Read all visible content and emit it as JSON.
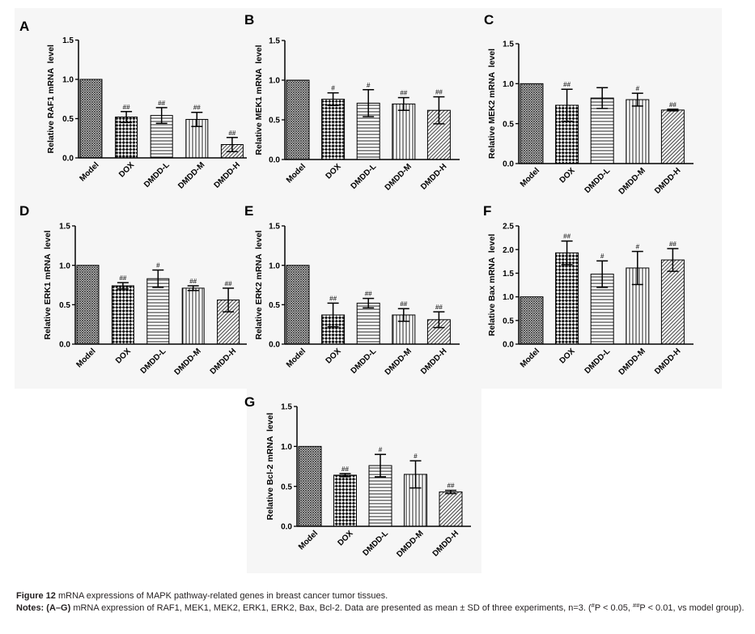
{
  "colors": {
    "ink": "#000000",
    "panel_background": "#f6f6f6",
    "caption_text": "#231f20"
  },
  "caption": {
    "label": "Figure 12",
    "title": "mRNA expressions of MAPK pathway-related genes in breast cancer tumor tissues.",
    "notes_label": "Notes:",
    "notes_range": "(A–G)",
    "notes_text": "mRNA expression of RAF1, MEK1, MEK2, ERK1, ERK2, Bax, Bcl-2. Data are presented as mean ± SD of three experiments, n=3. (",
    "sig1_mark": "#",
    "sig1_text": "P < 0.05, ",
    "sig2_mark": "##",
    "sig2_text": "P < 0.01, vs model group)."
  },
  "chart_data": [
    {
      "panel": "A",
      "type": "bar",
      "ylabel": "Relative RAF1 mRNA  level",
      "categories": [
        "Model",
        "DOX",
        "DMDD-L",
        "DMDD-M",
        "DMDD-H"
      ],
      "values": [
        1.0,
        0.52,
        0.54,
        0.49,
        0.17
      ],
      "errors": [
        0,
        0.07,
        0.1,
        0.09,
        0.09
      ],
      "significance": [
        null,
        "##",
        "##",
        "##",
        "##"
      ],
      "ylim": [
        0,
        1.5
      ],
      "yticks": [
        "0.0",
        "0.5",
        "1.0",
        "1.5"
      ]
    },
    {
      "panel": "B",
      "type": "bar",
      "ylabel": "Relative MEK1 mRNA  level",
      "categories": [
        "Model",
        "DOX",
        "DMDD-L",
        "DMDD-M",
        "DMDD-H"
      ],
      "values": [
        1.0,
        0.76,
        0.71,
        0.7,
        0.62
      ],
      "errors": [
        0,
        0.08,
        0.17,
        0.08,
        0.17
      ],
      "significance": [
        null,
        "#",
        "#",
        "##",
        "##"
      ],
      "ylim": [
        0,
        1.5
      ],
      "yticks": [
        "0.0",
        "0.5",
        "1.0",
        "1.5"
      ]
    },
    {
      "panel": "C",
      "type": "bar",
      "ylabel": "Relative MEK2 mRNA  level",
      "categories": [
        "Model",
        "DOX",
        "DMDD-L",
        "DMDD-M",
        "DMDD-H"
      ],
      "values": [
        1.0,
        0.73,
        0.82,
        0.8,
        0.67
      ],
      "errors": [
        0,
        0.2,
        0.13,
        0.08,
        0.01
      ],
      "significance": [
        null,
        "##",
        null,
        "#",
        "##"
      ],
      "ylim": [
        0,
        1.5
      ],
      "yticks": [
        "0.0",
        "0.5",
        "1.0",
        "1.5"
      ]
    },
    {
      "panel": "D",
      "type": "bar",
      "ylabel": "Relative ERK1 mRNA  level",
      "categories": [
        "Model",
        "DOX",
        "DMDD-L",
        "DMDD-M",
        "DMDD-H"
      ],
      "values": [
        1.0,
        0.74,
        0.83,
        0.71,
        0.56
      ],
      "errors": [
        0,
        0.04,
        0.11,
        0.03,
        0.15
      ],
      "significance": [
        null,
        "##",
        "#",
        "##",
        "##"
      ],
      "ylim": [
        0,
        1.5
      ],
      "yticks": [
        "0.0",
        "0.5",
        "1.0",
        "1.5"
      ]
    },
    {
      "panel": "E",
      "type": "bar",
      "ylabel": "Relative ERK2 mRNA  level",
      "categories": [
        "Model",
        "DOX",
        "DMDD-L",
        "DMDD-M",
        "DMDD-H"
      ],
      "values": [
        1.0,
        0.37,
        0.52,
        0.37,
        0.31
      ],
      "errors": [
        0,
        0.15,
        0.06,
        0.08,
        0.1
      ],
      "significance": [
        null,
        "##",
        "##",
        "##",
        "##"
      ],
      "ylim": [
        0,
        1.5
      ],
      "yticks": [
        "0.0",
        "0.5",
        "1.0",
        "1.5"
      ]
    },
    {
      "panel": "F",
      "type": "bar",
      "ylabel": "Relative Bax mRNA  level",
      "categories": [
        "Model",
        "DOX",
        "DMDD-L",
        "DMDD-M",
        "DMDD-H"
      ],
      "values": [
        1.0,
        1.93,
        1.48,
        1.61,
        1.78
      ],
      "errors": [
        0,
        0.25,
        0.28,
        0.35,
        0.24
      ],
      "significance": [
        null,
        "##",
        "#",
        "#",
        "##"
      ],
      "ylim": [
        0,
        2.5
      ],
      "yticks": [
        "0.0",
        "0.5",
        "1.0",
        "1.5",
        "2.0",
        "2.5"
      ]
    },
    {
      "panel": "G",
      "type": "bar",
      "ylabel": "Relative Bcl-2 mRNA  level",
      "categories": [
        "Model",
        "DOX",
        "DMDD-L",
        "DMDD-M",
        "DMDD-H"
      ],
      "values": [
        1.0,
        0.64,
        0.76,
        0.65,
        0.43
      ],
      "errors": [
        0,
        0.02,
        0.14,
        0.17,
        0.02
      ],
      "significance": [
        null,
        "##",
        "#",
        "#",
        "##"
      ],
      "ylim": [
        0,
        1.5
      ],
      "yticks": [
        "0.0",
        "0.5",
        "1.0",
        "1.5"
      ]
    }
  ]
}
